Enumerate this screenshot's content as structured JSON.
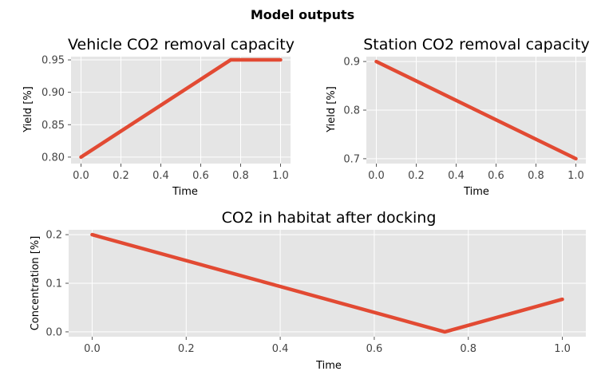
{
  "figure": {
    "suptitle": "Model outputs"
  },
  "style": {
    "line_color": "#e24a33",
    "axes_bg": "#e5e5e5",
    "grid_color": "#ffffff",
    "tick_color": "#555555"
  },
  "chart_data": [
    {
      "type": "line",
      "title": "Vehicle CO2 removal capacity",
      "xlabel": "Time",
      "ylabel": "Yield [%]",
      "xlim": [
        -0.05,
        1.05
      ],
      "ylim": [
        0.79,
        0.955
      ],
      "xticks": [
        "0.0",
        "0.2",
        "0.4",
        "0.6",
        "0.8",
        "1.0"
      ],
      "yticks": [
        "0.80",
        "0.85",
        "0.90",
        "0.95"
      ],
      "grid": true,
      "series": [
        {
          "x": [
            0.0,
            0.75,
            1.0
          ],
          "y": [
            0.8,
            0.95,
            0.95
          ]
        }
      ]
    },
    {
      "type": "line",
      "title": "Station CO2 removal capacity",
      "xlabel": "Time",
      "ylabel": "Yield [%]",
      "xlim": [
        -0.05,
        1.05
      ],
      "ylim": [
        0.69,
        0.91
      ],
      "xticks": [
        "0.0",
        "0.2",
        "0.4",
        "0.6",
        "0.8",
        "1.0"
      ],
      "yticks": [
        "0.7",
        "0.8",
        "0.9"
      ],
      "grid": true,
      "series": [
        {
          "x": [
            0.0,
            1.0
          ],
          "y": [
            0.9,
            0.7
          ]
        }
      ]
    },
    {
      "type": "line",
      "title": "CO2 in habitat after docking",
      "xlabel": "Time",
      "ylabel": "Concentration [%]",
      "xlim": [
        -0.05,
        1.05
      ],
      "ylim": [
        -0.01,
        0.21
      ],
      "xticks": [
        "0.0",
        "0.2",
        "0.4",
        "0.6",
        "0.8",
        "1.0"
      ],
      "yticks": [
        "0.0",
        "0.1",
        "0.2"
      ],
      "grid": true,
      "series": [
        {
          "x": [
            0.0,
            0.75,
            1.0
          ],
          "y": [
            0.2,
            0.0,
            0.067
          ]
        }
      ]
    }
  ]
}
